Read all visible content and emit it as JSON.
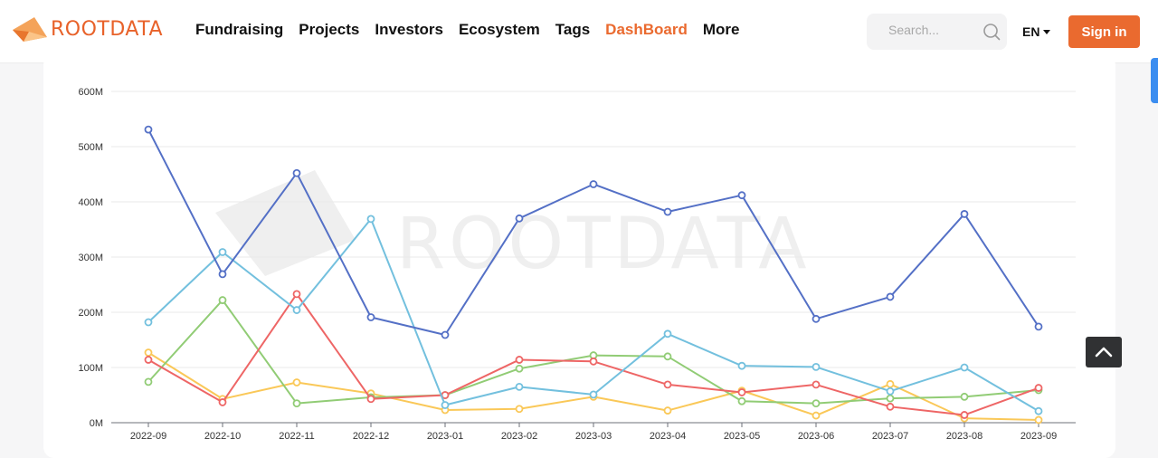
{
  "brand": {
    "name": "ROOTDATA",
    "accent": "#ea6a2f"
  },
  "nav": {
    "items": [
      {
        "label": "Fundraising",
        "active": false
      },
      {
        "label": "Projects",
        "active": false
      },
      {
        "label": "Investors",
        "active": false
      },
      {
        "label": "Ecosystem",
        "active": false
      },
      {
        "label": "Tags",
        "active": false
      },
      {
        "label": "DashBoard",
        "active": true
      },
      {
        "label": "More",
        "active": false
      }
    ]
  },
  "search": {
    "placeholder": "Search...",
    "icon": "search-icon"
  },
  "language": {
    "label": "EN",
    "icon": "caret-down-icon"
  },
  "signin": {
    "label": "Sign in"
  },
  "back_to_top": {
    "icon": "chevron-up-icon"
  },
  "chart_data": {
    "type": "line",
    "title": "",
    "watermark": "ROOTDATA",
    "xlabel": "",
    "ylabel": "",
    "categories": [
      "2022-09",
      "2022-10",
      "2022-11",
      "2022-12",
      "2023-01",
      "2023-02",
      "2023-03",
      "2023-04",
      "2023-05",
      "2023-06",
      "2023-07",
      "2023-08",
      "2023-09"
    ],
    "yticks": [
      "0M",
      "100M",
      "200M",
      "300M",
      "400M",
      "500M",
      "600M"
    ],
    "ylim": [
      0,
      600
    ],
    "grid": true,
    "legend": "none",
    "series": [
      {
        "color": "#5470c6",
        "values": [
          531,
          269,
          452,
          191,
          159,
          370,
          432,
          382,
          412,
          188,
          228,
          378,
          174
        ]
      },
      {
        "color": "#73c0de",
        "values": [
          182,
          309,
          204,
          369,
          32,
          65,
          51,
          161,
          103,
          101,
          57,
          100,
          21
        ]
      },
      {
        "color": "#ee6666",
        "values": [
          114,
          37,
          233,
          43,
          50,
          114,
          111,
          69,
          55,
          69,
          29,
          14,
          63
        ]
      },
      {
        "color": "#91cc75",
        "values": [
          74,
          222,
          35,
          46,
          50,
          98,
          122,
          120,
          39,
          35,
          44,
          47,
          59
        ]
      },
      {
        "color": "#fac858",
        "values": [
          127,
          43,
          73,
          53,
          23,
          25,
          47,
          22,
          58,
          13,
          70,
          8,
          5
        ]
      }
    ]
  }
}
